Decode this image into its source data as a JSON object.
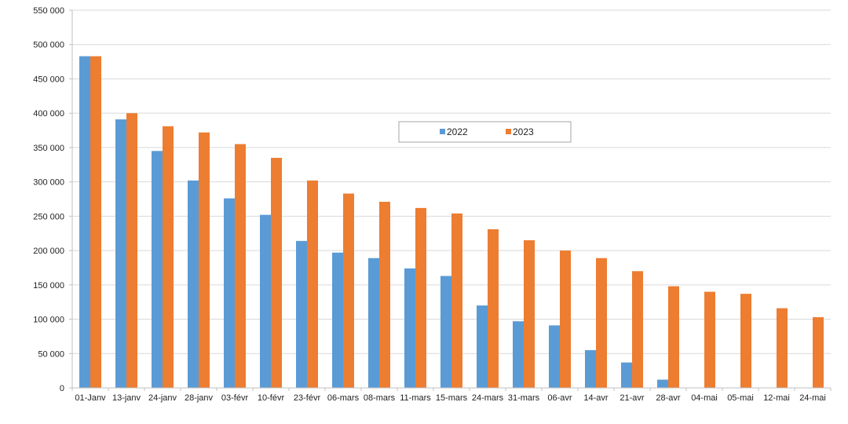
{
  "chart_data": {
    "type": "bar",
    "title": "",
    "xlabel": "",
    "ylabel": "",
    "ylim": [
      0,
      550000
    ],
    "yticks": [
      "0",
      "50 000",
      "100 000",
      "150 000",
      "200 000",
      "250 000",
      "300 000",
      "350 000",
      "400 000",
      "450 000",
      "500 000",
      "550 000"
    ],
    "grid": true,
    "legend_position": "center",
    "categories": [
      "01-Janv",
      "13-janv",
      "24-janv",
      "28-janv",
      "03-févr",
      "10-févr",
      "23-févr",
      "06-mars",
      "08-mars",
      "11-mars",
      "15-mars",
      "24-mars",
      "31-mars",
      "06-avr",
      "14-avr",
      "21-avr",
      "28-avr",
      "04-mai",
      "05-mai",
      "12-mai",
      "24-mai"
    ],
    "series": [
      {
        "name": "2022",
        "color": "#5B9BD5",
        "values": [
          483000,
          391000,
          345000,
          302000,
          276000,
          252000,
          214000,
          197000,
          189000,
          174000,
          163000,
          120000,
          97000,
          91000,
          55000,
          37000,
          12000,
          null,
          null,
          null,
          null
        ]
      },
      {
        "name": "2023",
        "color": "#ED7D31",
        "values": [
          483000,
          400000,
          381000,
          372000,
          355000,
          335000,
          302000,
          283000,
          271000,
          262000,
          254000,
          231000,
          215000,
          200000,
          189000,
          170000,
          148000,
          140000,
          137000,
          116000,
          103000
        ]
      }
    ]
  }
}
